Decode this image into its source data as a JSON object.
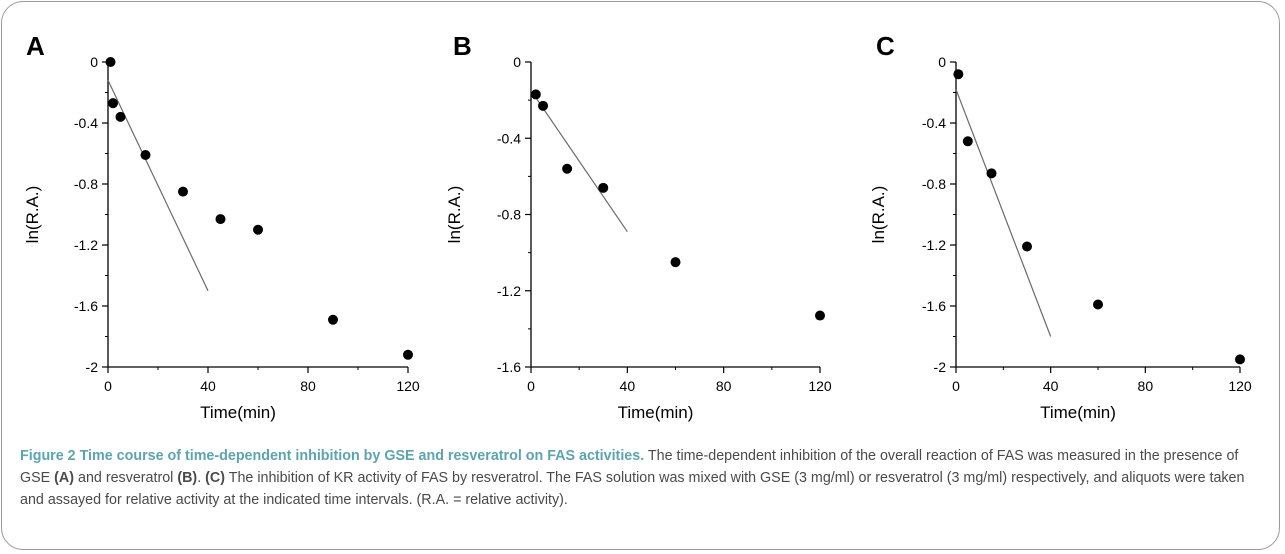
{
  "chart_data": [
    {
      "panel": "A",
      "type": "scatter",
      "xlabel": "Time(min)",
      "ylabel": "ln(R.A.)",
      "xlim": [
        0,
        120
      ],
      "ylim": [
        -2,
        0
      ],
      "xticks": [
        "0",
        "40",
        "80",
        "120"
      ],
      "yticks": [
        "0",
        "-0.4",
        "-0.8",
        "-1.2",
        "-1.6",
        "-2"
      ],
      "points": [
        {
          "x": 1,
          "y": 0
        },
        {
          "x": 2,
          "y": -0.27
        },
        {
          "x": 5,
          "y": -0.36
        },
        {
          "x": 15,
          "y": -0.61
        },
        {
          "x": 30,
          "y": -0.85
        },
        {
          "x": 45,
          "y": -1.03
        },
        {
          "x": 60,
          "y": -1.1
        },
        {
          "x": 90,
          "y": -1.69
        },
        {
          "x": 120,
          "y": -1.92
        }
      ],
      "fit_line": [
        {
          "x": 0,
          "y": -0.12
        },
        {
          "x": 40,
          "y": -1.5
        }
      ]
    },
    {
      "panel": "B",
      "type": "scatter",
      "xlabel": "Time(min)",
      "ylabel": "ln(R.A.)",
      "xlim": [
        0,
        120
      ],
      "ylim": [
        -1.6,
        0
      ],
      "xticks": [
        "0",
        "40",
        "80",
        "120"
      ],
      "yticks": [
        "0",
        "-0.4",
        "-0.8",
        "-1.2",
        "-1.6"
      ],
      "points": [
        {
          "x": 2,
          "y": -0.17
        },
        {
          "x": 5,
          "y": -0.23
        },
        {
          "x": 15,
          "y": -0.56
        },
        {
          "x": 30,
          "y": -0.66
        },
        {
          "x": 60,
          "y": -1.05
        },
        {
          "x": 120,
          "y": -1.33
        }
      ],
      "fit_line": [
        {
          "x": 0,
          "y": -0.15
        },
        {
          "x": 40,
          "y": -0.89
        }
      ]
    },
    {
      "panel": "C",
      "type": "scatter",
      "xlabel": "Time(min)",
      "ylabel": "ln(R.A.)",
      "xlim": [
        0,
        120
      ],
      "ylim": [
        -2,
        0
      ],
      "xticks": [
        "0",
        "40",
        "80",
        "120"
      ],
      "yticks": [
        "0",
        "-0.4",
        "-0.8",
        "-1.2",
        "-1.6",
        "-2"
      ],
      "points": [
        {
          "x": 1,
          "y": -0.08
        },
        {
          "x": 5,
          "y": -0.52
        },
        {
          "x": 15,
          "y": -0.73
        },
        {
          "x": 30,
          "y": -1.21
        },
        {
          "x": 60,
          "y": -1.59
        },
        {
          "x": 120,
          "y": -1.95
        }
      ],
      "fit_line": [
        {
          "x": 0,
          "y": -0.18
        },
        {
          "x": 40,
          "y": -1.8
        }
      ]
    }
  ],
  "caption": {
    "title": "Figure 2 Time course of time-dependent inhibition by GSE and resveratrol on FAS activities.",
    "t1": " The time-dependent inhibition of the overall reaction of FAS was measured in the presence of GSE ",
    "r1": "(A)",
    "t2": " and resveratrol ",
    "r2": "(B)",
    "t3": ". ",
    "r3": "(C)",
    "t4": " The inhibition of KR activity of FAS by resveratrol. The FAS solution was mixed with GSE (3 mg/ml) or resveratrol (3 mg/ml) respectively, and aliquots were taken and assayed for relative activity at the indicated time intervals. (R.A. = relative activity)."
  }
}
